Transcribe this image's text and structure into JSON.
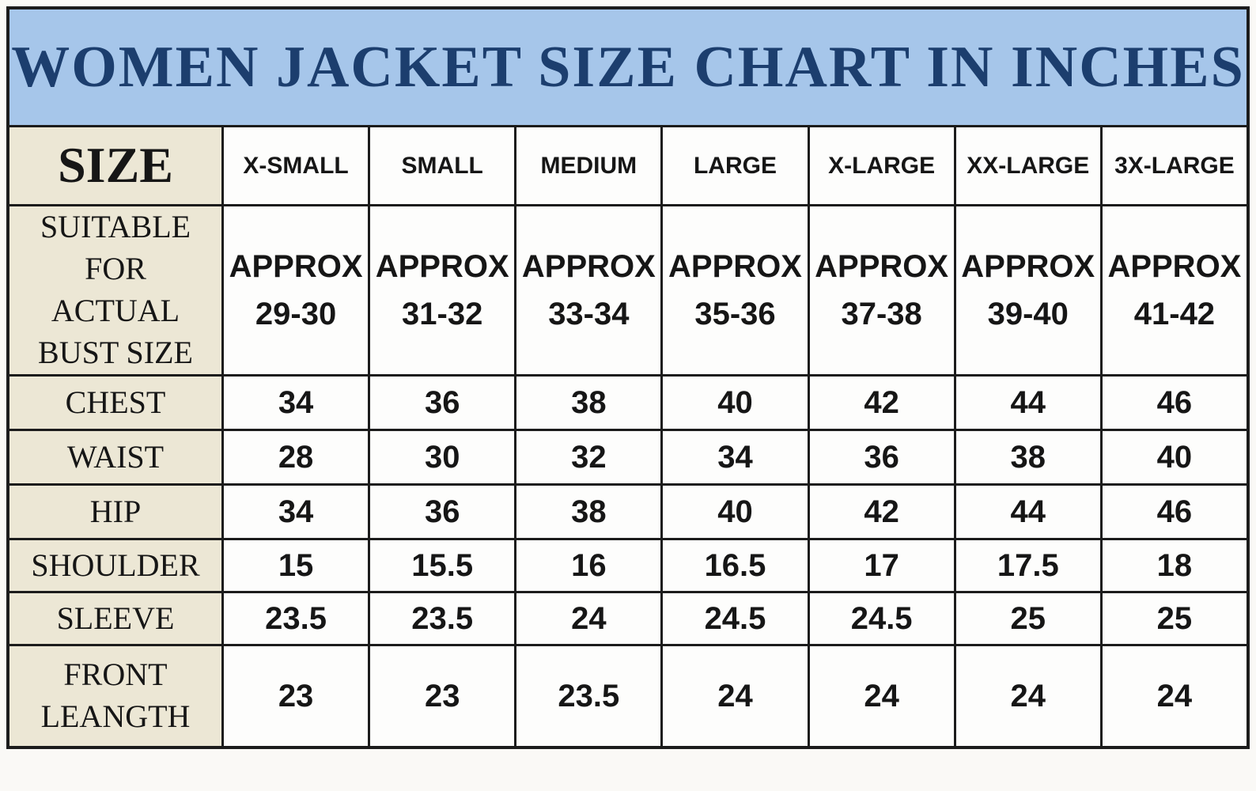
{
  "title": "WOMEN JACKET SIZE CHART IN INCHES",
  "colors": {
    "page_bg": "#faf9f6",
    "border_color": "#1c1c1c",
    "title_bg": "#a6c6ea",
    "title_text": "#1c3e6e",
    "label_bg": "#ece7d5",
    "cell_bg": "#fdfdfc",
    "text_color": "#161616"
  },
  "table": {
    "corner_label": "SIZE",
    "size_columns": [
      "X-SMALL",
      "SMALL",
      "MEDIUM",
      "LARGE",
      "X-LARGE",
      "XX-LARGE",
      "3X-LARGE"
    ],
    "rows": [
      {
        "label": "SUITABLE\nFOR\nACTUAL\nBUST SIZE",
        "values": [
          "APPROX\n29-30",
          "APPROX\n31-32",
          "APPROX\n33-34",
          "APPROX\n35-36",
          "APPROX\n37-38",
          "APPROX\n39-40",
          "APPROX\n41-42"
        ]
      },
      {
        "label": "CHEST",
        "values": [
          "34",
          "36",
          "38",
          "40",
          "42",
          "44",
          "46"
        ]
      },
      {
        "label": "WAIST",
        "values": [
          "28",
          "30",
          "32",
          "34",
          "36",
          "38",
          "40"
        ]
      },
      {
        "label": "HIP",
        "values": [
          "34",
          "36",
          "38",
          "40",
          "42",
          "44",
          "46"
        ]
      },
      {
        "label": "SHOULDER",
        "values": [
          "15",
          "15.5",
          "16",
          "16.5",
          "17",
          "17.5",
          "18"
        ]
      },
      {
        "label": "SLEEVE",
        "values": [
          "23.5",
          "23.5",
          "24",
          "24.5",
          "24.5",
          "25",
          "25"
        ]
      },
      {
        "label": "FRONT\nLEANGTH",
        "values": [
          "23",
          "23",
          "23.5",
          "24",
          "24",
          "24",
          "24"
        ]
      }
    ]
  }
}
